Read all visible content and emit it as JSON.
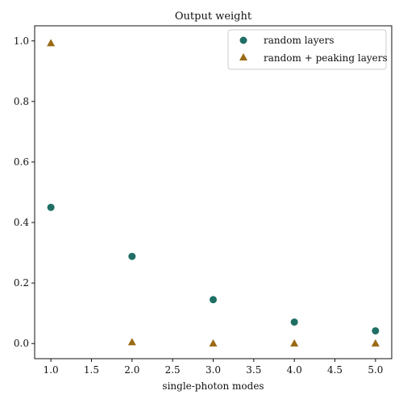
{
  "chart_data": {
    "type": "scatter",
    "title": "Output weight",
    "xlabel": "single-photon modes",
    "ylabel": "",
    "xlim": [
      0.8,
      5.2
    ],
    "ylim": [
      -0.05,
      1.05
    ],
    "x_ticks": [
      1.0,
      1.5,
      2.0,
      2.5,
      3.0,
      3.5,
      4.0,
      4.5,
      5.0
    ],
    "x_tick_labels": [
      "1.0",
      "1.5",
      "2.0",
      "2.5",
      "3.0",
      "3.5",
      "4.0",
      "4.5",
      "5.0"
    ],
    "y_ticks": [
      0.0,
      0.2,
      0.4,
      0.6,
      0.8,
      1.0
    ],
    "y_tick_labels": [
      "0.0",
      "0.2",
      "0.4",
      "0.6",
      "0.8",
      "1.0"
    ],
    "grid": false,
    "legend_position": "top-right",
    "series": [
      {
        "name": "random layers",
        "marker": "circle",
        "color": "#1f6f64",
        "x": [
          1,
          2,
          3,
          4,
          5
        ],
        "y": [
          0.45,
          0.288,
          0.145,
          0.071,
          0.042
        ]
      },
      {
        "name": "random + peaking layers",
        "marker": "triangle",
        "color": "#9a6a14",
        "x": [
          1,
          2,
          3,
          4,
          5
        ],
        "y": [
          0.993,
          0.005,
          0.001,
          0.001,
          0.001
        ]
      }
    ]
  }
}
